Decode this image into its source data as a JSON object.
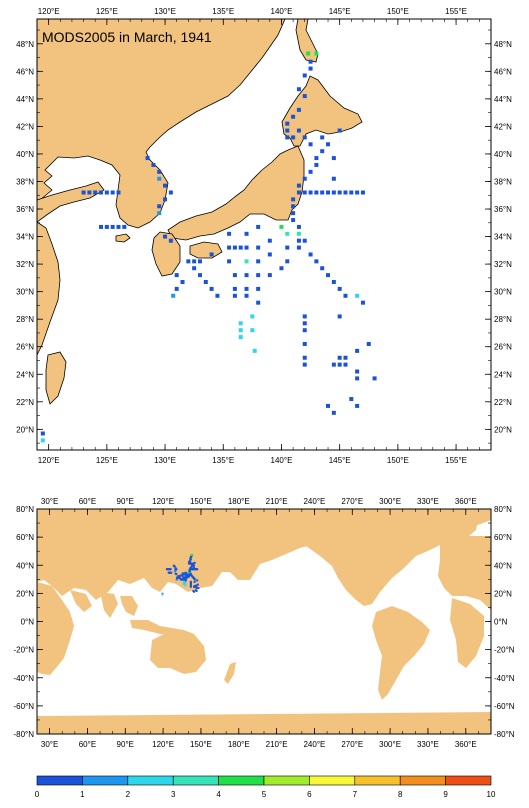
{
  "title": "MODS2005 in March, 1941",
  "colors": {
    "land": "#f2c37f",
    "ocean": "#ffffff",
    "coast": "#000000",
    "frame": "#000000",
    "scale": [
      "#1a52d8",
      "#1c96ee",
      "#2ed6ec",
      "#35e3b8",
      "#20e04a",
      "#a0ec2a",
      "#f7f73a",
      "#f7c02a",
      "#f38d1e",
      "#ee4f14"
    ]
  },
  "top_map": {
    "lon_range": [
      119,
      158
    ],
    "lat_range": [
      18.5,
      49.8
    ],
    "lon_ticks": [
      "120°E",
      "125°E",
      "130°E",
      "135°E",
      "140°E",
      "145°E",
      "150°E",
      "155°E"
    ],
    "lon_tick_values": [
      120,
      125,
      130,
      135,
      140,
      145,
      150,
      155
    ],
    "lat_ticks": [
      "20°N",
      "22°N",
      "24°N",
      "26°N",
      "28°N",
      "30°N",
      "32°N",
      "34°N",
      "36°N",
      "38°N",
      "40°N",
      "42°N",
      "44°N",
      "46°N",
      "48°N"
    ],
    "lat_tick_values": [
      20,
      22,
      24,
      26,
      28,
      30,
      32,
      34,
      36,
      38,
      40,
      42,
      44,
      46,
      48
    ]
  },
  "bottom_map": {
    "lon_range": [
      20,
      380
    ],
    "lat_range": [
      -80,
      80
    ],
    "lon_ticks": [
      "30°E",
      "60°E",
      "90°E",
      "120°E",
      "150°E",
      "180°E",
      "210°E",
      "240°E",
      "270°E",
      "300°E",
      "330°E",
      "360°E"
    ],
    "lon_tick_values": [
      30,
      60,
      90,
      120,
      150,
      180,
      210,
      240,
      270,
      300,
      330,
      360
    ],
    "lat_ticks": [
      "80°N",
      "60°N",
      "40°N",
      "20°N",
      "0°N",
      "-20°N",
      "-40°N",
      "-60°N",
      "-80°N"
    ],
    "lat_tick_values": [
      80,
      60,
      40,
      20,
      0,
      -20,
      -40,
      -60,
      -80
    ]
  },
  "colorbar": {
    "labels": [
      "0",
      "1",
      "2",
      "3",
      "4",
      "5",
      "6",
      "7",
      "8",
      "9",
      "10"
    ]
  },
  "observations": [
    {
      "lon": 119.5,
      "lat": 19.7,
      "v": 0.5
    },
    {
      "lon": 119.5,
      "lat": 19.2,
      "v": 2.5
    },
    {
      "lon": 123,
      "lat": 37.2,
      "v": 0.5
    },
    {
      "lon": 123.5,
      "lat": 37.2,
      "v": 0.5
    },
    {
      "lon": 124,
      "lat": 37.2,
      "v": 0.5
    },
    {
      "lon": 124.5,
      "lat": 37.2,
      "v": 0.5
    },
    {
      "lon": 125,
      "lat": 37.2,
      "v": 0.5
    },
    {
      "lon": 125.5,
      "lat": 37.2,
      "v": 0.5
    },
    {
      "lon": 126,
      "lat": 37.2,
      "v": 0.5
    },
    {
      "lon": 124.5,
      "lat": 34.7,
      "v": 0.5
    },
    {
      "lon": 125,
      "lat": 34.7,
      "v": 0.5
    },
    {
      "lon": 125.5,
      "lat": 34.7,
      "v": 0.5
    },
    {
      "lon": 126,
      "lat": 34.7,
      "v": 0.5
    },
    {
      "lon": 126.5,
      "lat": 34.7,
      "v": 0.5
    },
    {
      "lon": 128.5,
      "lat": 39.7,
      "v": 0.5
    },
    {
      "lon": 129,
      "lat": 39.2,
      "v": 0.5
    },
    {
      "lon": 129.5,
      "lat": 38.7,
      "v": 0.5
    },
    {
      "lon": 129.5,
      "lat": 38.2,
      "v": 1.5
    },
    {
      "lon": 130,
      "lat": 37.7,
      "v": 0.5
    },
    {
      "lon": 130.5,
      "lat": 37.2,
      "v": 0.5
    },
    {
      "lon": 130,
      "lat": 36.7,
      "v": 0.5
    },
    {
      "lon": 129.5,
      "lat": 36.2,
      "v": 0.5
    },
    {
      "lon": 129.5,
      "lat": 35.7,
      "v": 1.5
    },
    {
      "lon": 130,
      "lat": 34,
      "v": 0.5
    },
    {
      "lon": 130.5,
      "lat": 33.7,
      "v": 0.5
    },
    {
      "lon": 131,
      "lat": 31.2,
      "v": 0.5
    },
    {
      "lon": 131.5,
      "lat": 30.7,
      "v": 0.5
    },
    {
      "lon": 131,
      "lat": 30.2,
      "v": 0.5
    },
    {
      "lon": 130.7,
      "lat": 29.7,
      "v": 1.5
    },
    {
      "lon": 132,
      "lat": 32.2,
      "v": 0.5
    },
    {
      "lon": 132.5,
      "lat": 32.2,
      "v": 0.5
    },
    {
      "lon": 133,
      "lat": 32.2,
      "v": 0.5
    },
    {
      "lon": 132.5,
      "lat": 31.7,
      "v": 0.5
    },
    {
      "lon": 133,
      "lat": 31.2,
      "v": 0.5
    },
    {
      "lon": 133.5,
      "lat": 30.7,
      "v": 0.5
    },
    {
      "lon": 134,
      "lat": 32.7,
      "v": 0.5
    },
    {
      "lon": 134,
      "lat": 30.2,
      "v": 0.5
    },
    {
      "lon": 134.5,
      "lat": 29.7,
      "v": 0.5
    },
    {
      "lon": 135.5,
      "lat": 34.2,
      "v": 0.5
    },
    {
      "lon": 135.5,
      "lat": 33.2,
      "v": 0.5
    },
    {
      "lon": 136,
      "lat": 33.2,
      "v": 0.5
    },
    {
      "lon": 136.5,
      "lat": 33.2,
      "v": 0.5
    },
    {
      "lon": 135.5,
      "lat": 32.2,
      "v": 0.5
    },
    {
      "lon": 136,
      "lat": 31.2,
      "v": 0.5
    },
    {
      "lon": 136,
      "lat": 30.2,
      "v": 0.5
    },
    {
      "lon": 136,
      "lat": 29.7,
      "v": 0.5
    },
    {
      "lon": 137,
      "lat": 34.2,
      "v": 0.5
    },
    {
      "lon": 137,
      "lat": 33.2,
      "v": 0.5
    },
    {
      "lon": 137,
      "lat": 32.2,
      "v": 3.5
    },
    {
      "lon": 137,
      "lat": 31.2,
      "v": 0.5
    },
    {
      "lon": 137,
      "lat": 30.2,
      "v": 0.5
    },
    {
      "lon": 137,
      "lat": 29.7,
      "v": 0.5
    },
    {
      "lon": 136.5,
      "lat": 27.7,
      "v": 2.5
    },
    {
      "lon": 136.5,
      "lat": 27.2,
      "v": 2.5
    },
    {
      "lon": 136.5,
      "lat": 26.7,
      "v": 2.5
    },
    {
      "lon": 137.5,
      "lat": 28.2,
      "v": 2.5
    },
    {
      "lon": 137.5,
      "lat": 27.2,
      "v": 2.5
    },
    {
      "lon": 137.7,
      "lat": 25.7,
      "v": 2.5
    },
    {
      "lon": 138,
      "lat": 34.7,
      "v": 0.5
    },
    {
      "lon": 138,
      "lat": 33.2,
      "v": 0.5
    },
    {
      "lon": 138,
      "lat": 32.2,
      "v": 0.5
    },
    {
      "lon": 138,
      "lat": 31.2,
      "v": 0.5
    },
    {
      "lon": 138,
      "lat": 30.2,
      "v": 0.5
    },
    {
      "lon": 138,
      "lat": 29.2,
      "v": 0.5
    },
    {
      "lon": 139,
      "lat": 33.7,
      "v": 0.5
    },
    {
      "lon": 139,
      "lat": 32.7,
      "v": 0.5
    },
    {
      "lon": 139,
      "lat": 31.2,
      "v": 0.5
    },
    {
      "lon": 140,
      "lat": 34.7,
      "v": 4.5
    },
    {
      "lon": 140.5,
      "lat": 34.2,
      "v": 3.5
    },
    {
      "lon": 140.5,
      "lat": 33.2,
      "v": 0.5
    },
    {
      "lon": 140.5,
      "lat": 32.2,
      "v": 0.5
    },
    {
      "lon": 140,
      "lat": 31.7,
      "v": 0.5
    },
    {
      "lon": 141,
      "lat": 35.2,
      "v": 0.5
    },
    {
      "lon": 141.5,
      "lat": 34.7,
      "v": 0.5
    },
    {
      "lon": 141.5,
      "lat": 34.2,
      "v": 3.5
    },
    {
      "lon": 141.5,
      "lat": 33.7,
      "v": 0.5
    },
    {
      "lon": 141.5,
      "lat": 33.2,
      "v": 0.5
    },
    {
      "lon": 142,
      "lat": 33.7,
      "v": 0.5
    },
    {
      "lon": 142.5,
      "lat": 32.7,
      "v": 0.5
    },
    {
      "lon": 141,
      "lat": 35.7,
      "v": 0.5
    },
    {
      "lon": 141,
      "lat": 36.2,
      "v": 0.5
    },
    {
      "lon": 141,
      "lat": 36.7,
      "v": 0.5
    },
    {
      "lon": 141.5,
      "lat": 37.7,
      "v": 0.5
    },
    {
      "lon": 142,
      "lat": 38.2,
      "v": 0.5
    },
    {
      "lon": 142.5,
      "lat": 38.7,
      "v": 0.5
    },
    {
      "lon": 143,
      "lat": 39.2,
      "v": 0.5
    },
    {
      "lon": 143,
      "lat": 39.7,
      "v": 0.5
    },
    {
      "lon": 143.5,
      "lat": 40.2,
      "v": 0.5
    },
    {
      "lon": 143.5,
      "lat": 41.2,
      "v": 0.5
    },
    {
      "lon": 141.5,
      "lat": 37.2,
      "v": 0.5
    },
    {
      "lon": 142,
      "lat": 37.2,
      "v": 0.5
    },
    {
      "lon": 142.5,
      "lat": 37.2,
      "v": 0.5
    },
    {
      "lon": 143,
      "lat": 37.2,
      "v": 0.5
    },
    {
      "lon": 143.5,
      "lat": 37.2,
      "v": 0.5
    },
    {
      "lon": 144,
      "lat": 37.2,
      "v": 0.5
    },
    {
      "lon": 144.5,
      "lat": 37.2,
      "v": 0.5
    },
    {
      "lon": 145,
      "lat": 37.2,
      "v": 0.5
    },
    {
      "lon": 145.5,
      "lat": 37.2,
      "v": 0.5
    },
    {
      "lon": 146,
      "lat": 37.2,
      "v": 0.5
    },
    {
      "lon": 146.5,
      "lat": 37.2,
      "v": 0.5
    },
    {
      "lon": 147,
      "lat": 37.2,
      "v": 0.5
    },
    {
      "lon": 140.5,
      "lat": 41.2,
      "v": 0.5
    },
    {
      "lon": 140.5,
      "lat": 41.7,
      "v": 0.5
    },
    {
      "lon": 140.5,
      "lat": 42.2,
      "v": 0.5
    },
    {
      "lon": 141,
      "lat": 41.2,
      "v": 0.5
    },
    {
      "lon": 141.5,
      "lat": 41.7,
      "v": 0.5
    },
    {
      "lon": 142,
      "lat": 41.2,
      "v": 0.5
    },
    {
      "lon": 144,
      "lat": 40.7,
      "v": 0.5
    },
    {
      "lon": 145,
      "lat": 41.7,
      "v": 0.5
    },
    {
      "lon": 141,
      "lat": 42.7,
      "v": 0.5
    },
    {
      "lon": 141.5,
      "lat": 43.2,
      "v": 0.5
    },
    {
      "lon": 141.5,
      "lat": 44.7,
      "v": 0.5
    },
    {
      "lon": 142,
      "lat": 44.2,
      "v": 0.5
    },
    {
      "lon": 142,
      "lat": 45.7,
      "v": 0.5
    },
    {
      "lon": 142.5,
      "lat": 46.2,
      "v": 0.5
    },
    {
      "lon": 142.5,
      "lat": 46.7,
      "v": 0.5
    },
    {
      "lon": 142.3,
      "lat": 47.3,
      "v": 4.5
    },
    {
      "lon": 143,
      "lat": 47.3,
      "v": 4.5
    },
    {
      "lon": 142.5,
      "lat": 40.7,
      "v": 0.5
    },
    {
      "lon": 144.5,
      "lat": 39.7,
      "v": 0.5
    },
    {
      "lon": 144.5,
      "lat": 38.2,
      "v": 0.5
    },
    {
      "lon": 143,
      "lat": 32.2,
      "v": 0.5
    },
    {
      "lon": 143.5,
      "lat": 31.7,
      "v": 0.5
    },
    {
      "lon": 144,
      "lat": 31.2,
      "v": 0.5
    },
    {
      "lon": 144.5,
      "lat": 30.7,
      "v": 0.5
    },
    {
      "lon": 145,
      "lat": 30.2,
      "v": 0.5
    },
    {
      "lon": 145.5,
      "lat": 29.7,
      "v": 0.5
    },
    {
      "lon": 146.5,
      "lat": 29.7,
      "v": 2.5
    },
    {
      "lon": 147,
      "lat": 29.2,
      "v": 0.5
    },
    {
      "lon": 142,
      "lat": 28.2,
      "v": 0.5
    },
    {
      "lon": 142,
      "lat": 27.7,
      "v": 0.5
    },
    {
      "lon": 142,
      "lat": 27.2,
      "v": 0.5
    },
    {
      "lon": 142,
      "lat": 26.2,
      "v": 0.5
    },
    {
      "lon": 142,
      "lat": 25.2,
      "v": 0.5
    },
    {
      "lon": 142,
      "lat": 24.7,
      "v": 0.5
    },
    {
      "lon": 144.5,
      "lat": 24.7,
      "v": 0.5
    },
    {
      "lon": 145,
      "lat": 24.7,
      "v": 0.5
    },
    {
      "lon": 145.5,
      "lat": 24.7,
      "v": 0.5
    },
    {
      "lon": 145,
      "lat": 25.2,
      "v": 0.5
    },
    {
      "lon": 145.5,
      "lat": 25.2,
      "v": 0.5
    },
    {
      "lon": 146.5,
      "lat": 25.7,
      "v": 0.5
    },
    {
      "lon": 146.5,
      "lat": 24.2,
      "v": 0.5
    },
    {
      "lon": 146.5,
      "lat": 23.7,
      "v": 0.5
    },
    {
      "lon": 146,
      "lat": 22.2,
      "v": 0.5
    },
    {
      "lon": 146.5,
      "lat": 21.7,
      "v": 0.5
    },
    {
      "lon": 147.5,
      "lat": 26.2,
      "v": 0.5
    },
    {
      "lon": 148,
      "lat": 23.7,
      "v": 0.5
    },
    {
      "lon": 144,
      "lat": 21.7,
      "v": 0.5
    },
    {
      "lon": 144.5,
      "lat": 21.2,
      "v": 0.5
    },
    {
      "lon": 145,
      "lat": 28.2,
      "v": 0.5
    }
  ]
}
